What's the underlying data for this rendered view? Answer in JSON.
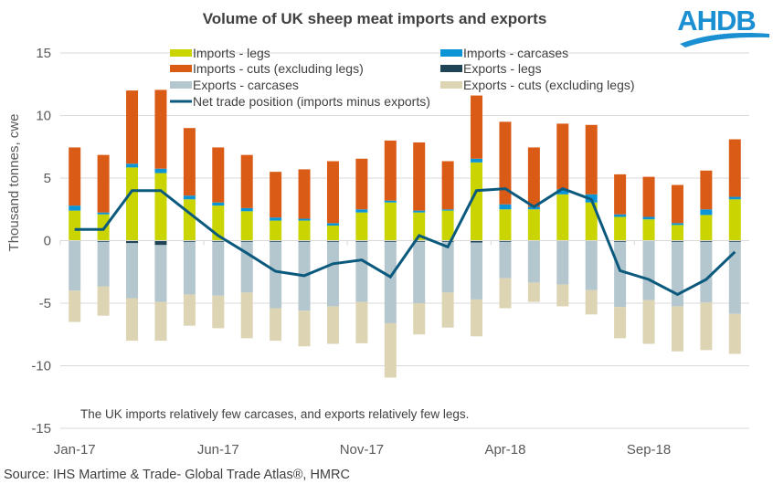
{
  "chart_data": {
    "type": "bar",
    "stacked": true,
    "title": "Volume of UK sheep meat imports and exports",
    "ylabel": "Thousand tonnes, cwe",
    "xlabel": "",
    "ylim": [
      -15,
      15
    ],
    "yticks": [
      15,
      10,
      5,
      0,
      -5,
      -10,
      -15
    ],
    "grid": true,
    "legend_position": "top",
    "categories": [
      "Jan-17",
      "Feb-17",
      "Mar-17",
      "Apr-17",
      "May-17",
      "Jun-17",
      "Jul-17",
      "Aug-17",
      "Sep-17",
      "Oct-17",
      "Nov-17",
      "Dec-17",
      "Jan-18",
      "Feb-18",
      "Mar-18",
      "Apr-18",
      "May-18",
      "Jun-18",
      "Jul-18",
      "Aug-18",
      "Sep-18",
      "Oct-18",
      "Nov-18",
      "Dec-18"
    ],
    "xtick_labels": [
      {
        "index": 0,
        "label": "Jan-17"
      },
      {
        "index": 5,
        "label": "Jun-17"
      },
      {
        "index": 10,
        "label": "Nov-17"
      },
      {
        "index": 15,
        "label": "Apr-18"
      },
      {
        "index": 20,
        "label": "Sep-18"
      }
    ],
    "series": [
      {
        "name": "Imports - legs",
        "kind": "bar",
        "color": "#c9d400",
        "values": [
          2.4,
          2.1,
          5.85,
          5.4,
          3.3,
          2.8,
          2.35,
          1.6,
          1.6,
          1.2,
          2.25,
          3.05,
          2.25,
          2.4,
          6.25,
          2.5,
          2.5,
          3.7,
          3.05,
          1.9,
          1.7,
          1.25,
          2.05,
          3.3
        ]
      },
      {
        "name": "Imports - carcases",
        "kind": "bar",
        "color": "#0b95d6",
        "values": [
          0.4,
          0.15,
          0.3,
          0.35,
          0.3,
          0.25,
          0.25,
          0.25,
          0.15,
          0.2,
          0.25,
          0.15,
          0.15,
          0.1,
          0.3,
          0.4,
          0.2,
          0.4,
          0.65,
          0.2,
          0.2,
          0.15,
          0.45,
          0.2
        ]
      },
      {
        "name": "Imports - cuts (excluding legs)",
        "kind": "bar",
        "color": "#d95b16",
        "values": [
          4.65,
          4.6,
          5.85,
          6.3,
          5.4,
          4.4,
          4.25,
          3.65,
          3.95,
          4.95,
          4.05,
          4.8,
          5.45,
          3.85,
          5.05,
          6.6,
          4.75,
          5.25,
          5.55,
          3.2,
          3.2,
          3.05,
          3.1,
          4.6
        ]
      },
      {
        "name": "Exports - legs",
        "kind": "bar",
        "color": "#1e4456",
        "values": [
          -0.05,
          -0.1,
          -0.2,
          -0.35,
          -0.1,
          -0.1,
          -0.1,
          -0.1,
          -0.1,
          -0.1,
          -0.1,
          -0.1,
          -0.1,
          -0.1,
          -0.15,
          -0.1,
          -0.05,
          -0.05,
          -0.05,
          -0.1,
          -0.05,
          -0.1,
          -0.1,
          -0.1
        ]
      },
      {
        "name": "Exports - carcases",
        "kind": "bar",
        "color": "#b4c6ce",
        "values": [
          -3.95,
          -3.55,
          -4.4,
          -4.55,
          -4.2,
          -4.3,
          -4.05,
          -5.3,
          -5.5,
          -5.15,
          -4.8,
          -6.5,
          -4.9,
          -4.05,
          -4.55,
          -2.9,
          -3.3,
          -3.45,
          -3.9,
          -5.2,
          -4.7,
          -5.15,
          -4.85,
          -5.75
        ]
      },
      {
        "name": "Exports - cuts (excluding legs)",
        "kind": "bar",
        "color": "#ddd4b4",
        "values": [
          -2.5,
          -2.35,
          -3.4,
          -3.1,
          -2.5,
          -2.6,
          -3.65,
          -2.6,
          -2.85,
          -3.0,
          -3.3,
          -4.35,
          -2.5,
          -2.8,
          -2.95,
          -2.4,
          -1.55,
          -1.75,
          -1.95,
          -2.5,
          -3.5,
          -3.6,
          -3.8,
          -3.2
        ]
      },
      {
        "name": "Net trade position (imports minus exports)",
        "kind": "line",
        "color": "#0b5a7e",
        "values": [
          0.9,
          0.9,
          4.0,
          4.0,
          2.2,
          0.4,
          -1.0,
          -2.45,
          -2.8,
          -1.85,
          -1.55,
          -2.9,
          0.4,
          -0.5,
          4.0,
          4.15,
          2.7,
          4.15,
          3.3,
          -2.4,
          -3.1,
          -4.3,
          -3.1,
          -0.9
        ]
      }
    ],
    "legend_order": [
      "Imports - legs",
      "Imports - carcases",
      "Imports - cuts (excluding legs)",
      "Exports - legs",
      "Exports - carcases",
      "Exports - cuts (excluding legs)",
      "Net trade position (imports minus exports)"
    ],
    "annotation": "The UK imports relatively few carcases, and exports relatively few legs.",
    "source": "Source: IHS Martime & Trade- Global Trade Atlas®, HMRC"
  },
  "logo": {
    "text": "AHDB",
    "color": "#1a8fd1"
  },
  "colors": {
    "grid": "#d9d9d9",
    "text": "#595959"
  }
}
